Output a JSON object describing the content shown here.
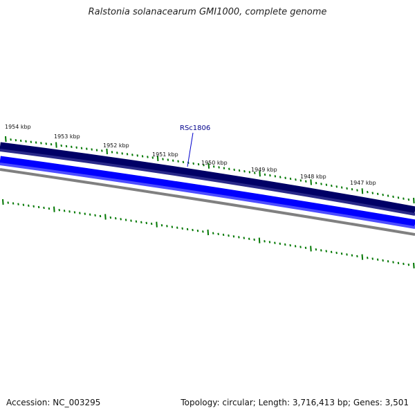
{
  "title": "Ralstonia solanacearum GMI1000, complete genome",
  "footer": {
    "accession": "Accession: NC_003295",
    "summary": "Topology: circular; Length: 3,716,413 bp; Genes: 3,501"
  },
  "colors": {
    "forward_track": "#000066",
    "reverse_track": "#0000ff",
    "backbone": "#808080",
    "ticks": "#007700",
    "gene_label": "#00008b"
  },
  "ticks": [
    {
      "label": "1954 kbp"
    },
    {
      "label": "1953 kbp"
    },
    {
      "label": "1952 kbp"
    },
    {
      "label": "1951 kbp"
    },
    {
      "label": "1950 kbp"
    },
    {
      "label": "1949 kbp"
    },
    {
      "label": "1948 kbp"
    },
    {
      "label": "1947 kbp"
    }
  ],
  "gene": {
    "label": "RSc1806"
  }
}
